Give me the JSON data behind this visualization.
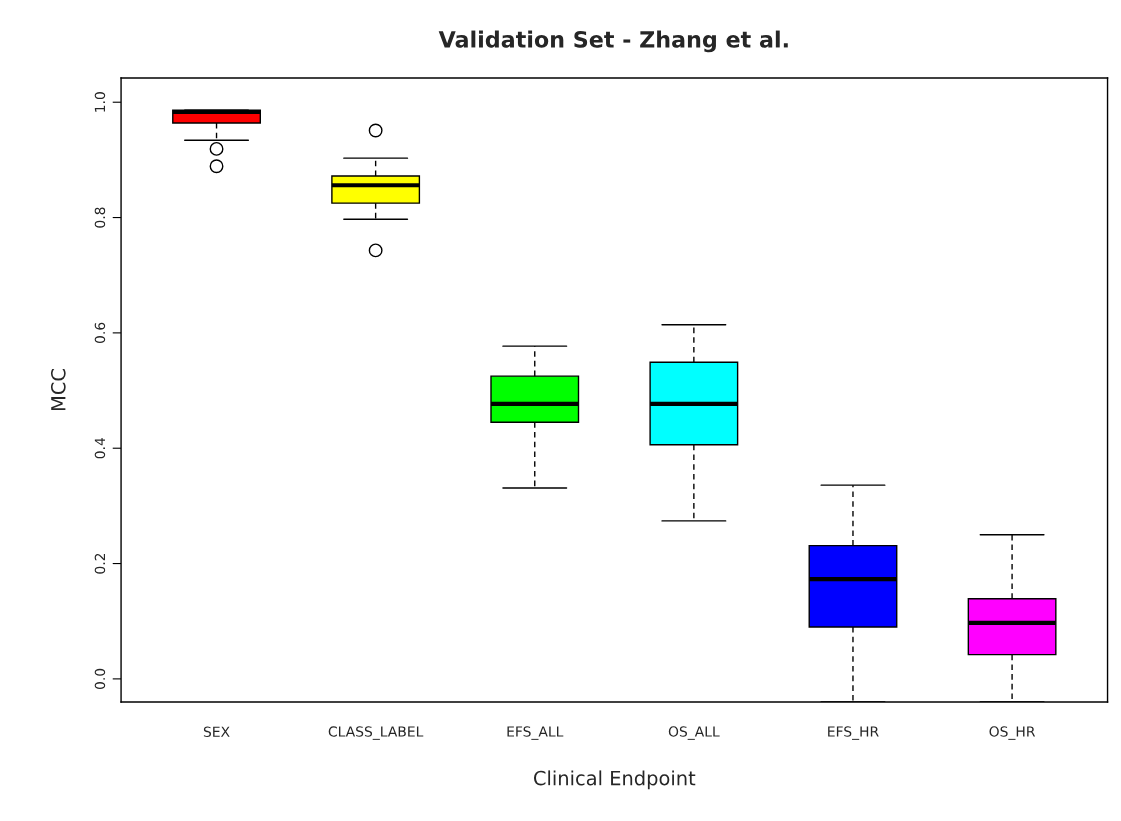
{
  "chart_data": {
    "type": "box",
    "title": "Validation Set - Zhang et al.",
    "xlabel": "Clinical Endpoint",
    "ylabel": "MCC",
    "categories": [
      "SEX",
      "CLASS_LABEL",
      "EFS_ALL",
      "OS_ALL",
      "EFS_HR",
      "OS_HR"
    ],
    "colors": [
      "#ff0000",
      "#ffff00",
      "#00ff00",
      "#00ffff",
      "#0000ff",
      "#ff00ff"
    ],
    "boxes": [
      {
        "low": 0.934,
        "q1": 0.964,
        "median": 0.983,
        "q3": 0.986,
        "high": 0.986,
        "outliers": [
          0.919,
          0.889
        ]
      },
      {
        "low": 0.797,
        "q1": 0.825,
        "median": 0.856,
        "q3": 0.872,
        "high": 0.903,
        "outliers": [
          0.951,
          0.743
        ]
      },
      {
        "low": 0.331,
        "q1": 0.445,
        "median": 0.477,
        "q3": 0.525,
        "high": 0.577
      },
      {
        "low": 0.274,
        "q1": 0.406,
        "median": 0.477,
        "q3": 0.549,
        "high": 0.614
      },
      {
        "low": -0.04,
        "q1": 0.09,
        "median": 0.173,
        "q3": 0.231,
        "high": 0.336
      },
      {
        "low": -0.04,
        "q1": 0.042,
        "median": 0.097,
        "q3": 0.139,
        "high": 0.25
      }
    ],
    "ylim": [
      -0.04,
      1.042
    ],
    "yticks": [
      {
        "value": 0,
        "label": "0.0"
      },
      0.2,
      0.4,
      0.6,
      0.8,
      {
        "value": 1,
        "label": "1.0"
      }
    ],
    "grid": false,
    "legend": false
  }
}
